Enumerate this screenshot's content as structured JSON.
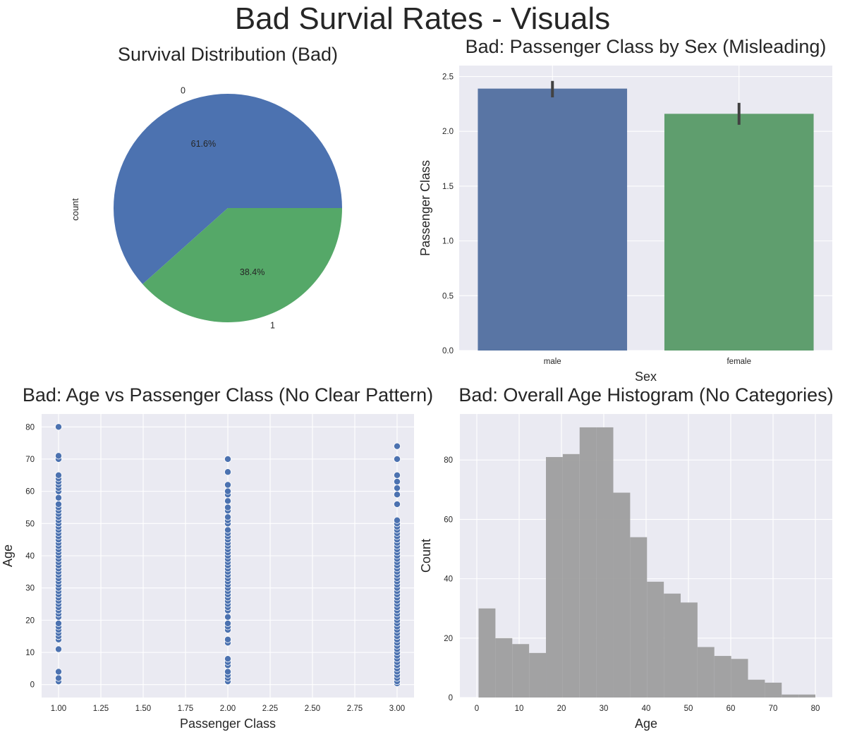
{
  "suptitle": "Bad Survial Rates - Visuals",
  "colors": {
    "blue": "#4c72b0",
    "green": "#55a868",
    "bar_blue": "#5975a4",
    "bar_green": "#5f9e6e",
    "gray": "#9e9e9e",
    "axes_bg": "#eaeaf2",
    "errbar": "#424242"
  },
  "chart_data": [
    {
      "type": "pie",
      "title": "Survival Distribution (Bad)",
      "ylabel": "count",
      "labels": [
        "0",
        "1"
      ],
      "values": [
        61.6,
        38.4
      ],
      "pct_labels": [
        "61.6%",
        "38.4%"
      ]
    },
    {
      "type": "bar",
      "title": "Bad: Passenger Class by Sex (Misleading)",
      "xlabel": "Sex",
      "ylabel": "Passenger Class",
      "categories": [
        "male",
        "female"
      ],
      "values": [
        2.39,
        2.16
      ],
      "error": [
        [
          2.31,
          2.46
        ],
        [
          2.06,
          2.26
        ]
      ],
      "ylim": [
        0,
        2.6
      ],
      "yticks": [
        0.0,
        0.5,
        1.0,
        1.5,
        2.0,
        2.5
      ],
      "ytick_labels": [
        "0.0",
        "0.5",
        "1.0",
        "1.5",
        "2.0",
        "2.5"
      ],
      "grid": true
    },
    {
      "type": "scatter",
      "title": "Bad: Age vs Passenger Class (No Clear Pattern)",
      "xlabel": "Passenger Class",
      "ylabel": "Age",
      "xlim": [
        0.9,
        3.1
      ],
      "ylim": [
        -4,
        84
      ],
      "xticks": [
        1.0,
        1.25,
        1.5,
        1.75,
        2.0,
        2.25,
        2.5,
        2.75,
        3.0
      ],
      "xtick_labels": [
        "1.00",
        "1.25",
        "1.50",
        "1.75",
        "2.00",
        "2.25",
        "2.50",
        "2.75",
        "3.00"
      ],
      "yticks": [
        0,
        10,
        20,
        30,
        40,
        50,
        60,
        70,
        80
      ],
      "ytick_labels": [
        "0",
        "10",
        "20",
        "30",
        "40",
        "50",
        "60",
        "70",
        "80"
      ],
      "series": [
        {
          "x": 1,
          "ages": [
            1,
            2,
            4,
            11,
            14,
            15,
            16,
            17,
            18,
            19,
            21,
            22,
            23,
            24,
            25,
            26,
            27,
            28,
            29,
            30,
            31,
            32,
            33,
            34,
            35,
            36,
            37,
            38,
            39,
            40,
            41,
            42,
            43,
            44,
            45,
            46,
            47,
            48,
            49,
            50,
            51,
            52,
            53,
            54,
            55,
            56,
            58,
            60,
            61,
            62,
            63,
            64,
            65,
            70,
            71,
            80
          ]
        },
        {
          "x": 2,
          "ages": [
            1,
            2,
            3,
            4,
            6,
            7,
            8,
            13,
            14,
            17,
            18,
            19,
            21,
            23,
            24,
            25,
            26,
            27,
            28,
            29,
            30,
            31,
            32,
            33,
            34,
            35,
            36,
            37,
            38,
            39,
            40,
            41,
            42,
            43,
            44,
            45,
            46,
            47,
            48,
            50,
            51,
            52,
            54,
            55,
            57,
            59,
            60,
            62,
            66,
            70
          ]
        },
        {
          "x": 3,
          "ages": [
            0.4,
            1,
            2,
            3,
            4,
            5,
            6,
            7,
            8,
            9,
            10,
            11,
            12,
            13,
            14,
            15,
            16,
            17,
            18,
            19,
            20,
            21,
            22,
            23,
            24,
            25,
            26,
            27,
            28,
            29,
            30,
            31,
            32,
            33,
            34,
            35,
            36,
            37,
            38,
            39,
            40,
            41,
            42,
            43,
            44,
            45,
            46,
            47,
            48,
            49,
            50,
            51,
            56,
            59,
            61,
            63,
            65,
            70,
            74
          ]
        }
      ],
      "grid": true
    },
    {
      "type": "bar",
      "subtype": "histogram",
      "title": "Bad: Overall Age Histogram (No Categories)",
      "xlabel": "Age",
      "ylabel": "Count",
      "bin_start": 0.42,
      "bin_width": 3.979,
      "counts": [
        30,
        20,
        18,
        15,
        81,
        82,
        91,
        91,
        69,
        54,
        39,
        35,
        32,
        17,
        14,
        13,
        6,
        5,
        1,
        1
      ],
      "xlim": [
        -4,
        84
      ],
      "ylim": [
        0,
        95.5
      ],
      "xticks": [
        0,
        10,
        20,
        30,
        40,
        50,
        60,
        70,
        80
      ],
      "xtick_labels": [
        "0",
        "10",
        "20",
        "30",
        "40",
        "50",
        "60",
        "70",
        "80"
      ],
      "yticks": [
        0,
        20,
        40,
        60,
        80
      ],
      "ytick_labels": [
        "0",
        "20",
        "40",
        "60",
        "80"
      ],
      "grid": true
    }
  ]
}
